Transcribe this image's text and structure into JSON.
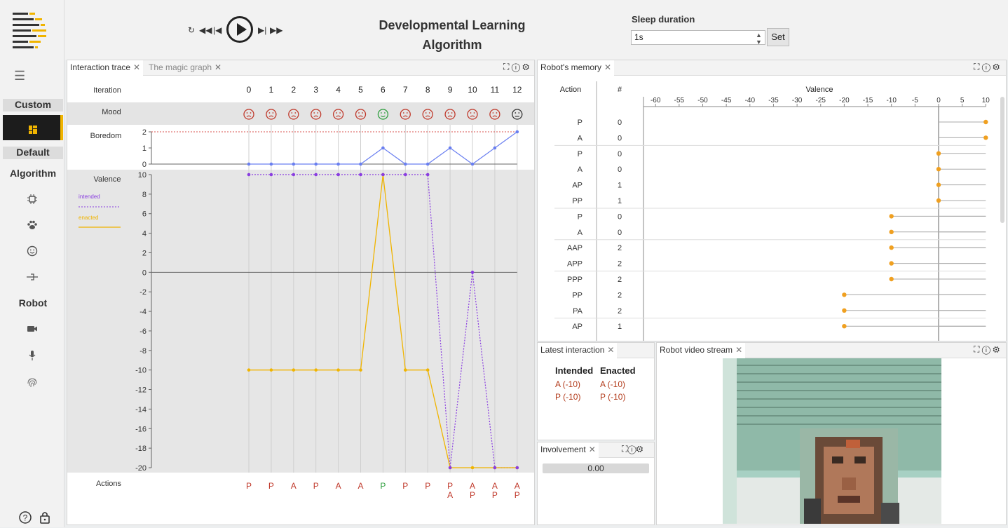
{
  "sidebar": {
    "sections": {
      "custom": "Custom",
      "default": "Default",
      "algorithm": "Algorithm",
      "robot": "Robot"
    },
    "icons": [
      "dashboard-icon",
      "chip-icon",
      "paw-icon",
      "smiley-icon",
      "plug-icon",
      "camera-icon",
      "microphone-icon",
      "fingerprint-icon"
    ]
  },
  "toolbar": {
    "title": "Developmental Learning Algorithm"
  },
  "sleep": {
    "label": "Sleep duration",
    "value": "1s",
    "set_label": "Set"
  },
  "tabs": {
    "trace": "Interaction trace",
    "magic": "The magic graph",
    "memory": "Robot's memory",
    "latest": "Latest interaction",
    "video": "Robot video stream",
    "involvement": "Involvement"
  },
  "trace": {
    "labels": {
      "iteration": "Iteration",
      "mood": "Mood",
      "boredom": "Boredom",
      "valence": "Valence",
      "actions": "Actions",
      "intended": "intended",
      "enacted": "enacted"
    },
    "iterations": [
      "0",
      "1",
      "2",
      "3",
      "4",
      "5",
      "6",
      "7",
      "8",
      "9",
      "10",
      "11",
      "12"
    ],
    "moods": [
      "sad",
      "sad",
      "sad",
      "sad",
      "sad",
      "sad",
      "happy",
      "sad",
      "sad",
      "sad",
      "sad",
      "sad",
      "neutral"
    ],
    "boredom": [
      0,
      0,
      0,
      0,
      0,
      0,
      1,
      0,
      0,
      1,
      0,
      1,
      2
    ],
    "intended": [
      10,
      10,
      10,
      10,
      10,
      10,
      10,
      10,
      10,
      -20,
      0,
      -20,
      -20
    ],
    "enacted": [
      -10,
      -10,
      -10,
      -10,
      -10,
      -10,
      10,
      -10,
      -10,
      -20,
      -20,
      -20,
      -20
    ],
    "actions": [
      [
        "P"
      ],
      [
        "P"
      ],
      [
        "A"
      ],
      [
        "P"
      ],
      [
        "A"
      ],
      [
        "A"
      ],
      [
        "P"
      ],
      [
        "P"
      ],
      [
        "P"
      ],
      [
        "P",
        "A"
      ],
      [
        "A",
        "P"
      ],
      [
        "A",
        "P"
      ],
      [
        "A",
        "P"
      ]
    ],
    "colors": {
      "intended": "#8a3ee0",
      "enacted": "#f0b400",
      "boredom": "#6a7ff0",
      "sad": "#c0392b",
      "happy": "#2e9e3e",
      "neutral": "#333333"
    }
  },
  "chart_data": [
    {
      "type": "line",
      "title": "Boredom",
      "x": [
        0,
        1,
        2,
        3,
        4,
        5,
        6,
        7,
        8,
        9,
        10,
        11,
        12
      ],
      "series": [
        {
          "values": [
            0,
            0,
            0,
            0,
            0,
            0,
            1,
            0,
            0,
            1,
            0,
            1,
            2
          ]
        }
      ],
      "ylim": [
        0,
        2
      ],
      "yticks": [
        "0",
        "1",
        "2"
      ]
    },
    {
      "type": "line",
      "title": "Valence",
      "x": [
        0,
        1,
        2,
        3,
        4,
        5,
        6,
        7,
        8,
        9,
        10,
        11,
        12
      ],
      "series": [
        {
          "name": "intended",
          "values": [
            10,
            10,
            10,
            10,
            10,
            10,
            10,
            10,
            10,
            -20,
            0,
            -20,
            -20
          ]
        },
        {
          "name": "enacted",
          "values": [
            -10,
            -10,
            -10,
            -10,
            -10,
            -10,
            10,
            -10,
            -10,
            -20,
            -20,
            -20,
            -20
          ]
        }
      ],
      "ylim": [
        -20,
        10
      ],
      "yticks": [
        "10",
        "8",
        "6",
        "4",
        "2",
        "0",
        "-2",
        "-4",
        "-6",
        "-8",
        "-10",
        "-12",
        "-14",
        "-16",
        "-18",
        "-20"
      ]
    },
    {
      "type": "scatter",
      "title": "Valence",
      "ylabel": "Action",
      "xlim": [
        -60,
        10
      ],
      "xticks": [
        "-60",
        "-55",
        "-50",
        "-45",
        "-40",
        "-35",
        "-30",
        "-25",
        "-20",
        "-15",
        "-10",
        "-5",
        "0",
        "5",
        "10"
      ],
      "rows": [
        {
          "action": "P",
          "count": "0",
          "valence": 10
        },
        {
          "action": "A",
          "count": "0",
          "valence": 10
        },
        {
          "action": "P",
          "count": "0",
          "valence": 0
        },
        {
          "action": "A",
          "count": "0",
          "valence": 0
        },
        {
          "action": "AP",
          "count": "1",
          "valence": 0
        },
        {
          "action": "PP",
          "count": "1",
          "valence": 0
        },
        {
          "action": "P",
          "count": "0",
          "valence": -10
        },
        {
          "action": "A",
          "count": "0",
          "valence": -10
        },
        {
          "action": "AAP",
          "count": "2",
          "valence": -10
        },
        {
          "action": "APP",
          "count": "2",
          "valence": -10
        },
        {
          "action": "PPP",
          "count": "2",
          "valence": -10
        },
        {
          "action": "PP",
          "count": "2",
          "valence": -20
        },
        {
          "action": "PA",
          "count": "2",
          "valence": -20
        },
        {
          "action": "AP",
          "count": "1",
          "valence": -20
        }
      ]
    }
  ],
  "memory": {
    "col_action": "Action",
    "col_count": "#",
    "col_valence": "Valence"
  },
  "latest": {
    "intended_label": "Intended",
    "enacted_label": "Enacted",
    "rows": [
      [
        "A (-10)",
        "A (-10)"
      ],
      [
        "P (-10)",
        "P (-10)"
      ]
    ]
  },
  "involvement": {
    "value": "0.00"
  }
}
